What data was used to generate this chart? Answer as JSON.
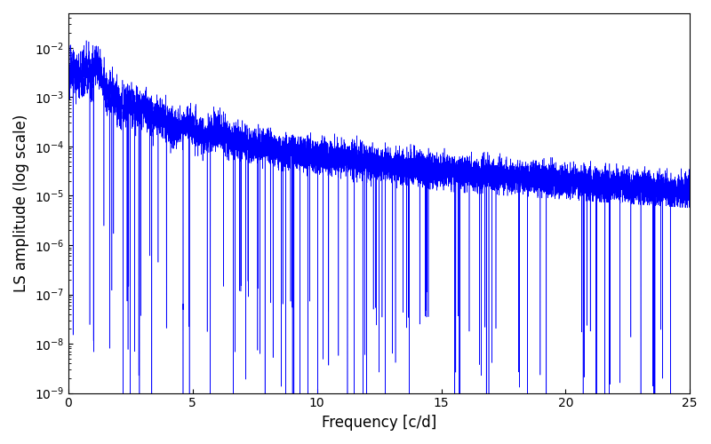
{
  "title": "",
  "xlabel": "Frequency [c/d]",
  "ylabel": "LS amplitude (log scale)",
  "xlim": [
    0,
    25
  ],
  "ylim": [
    1e-09,
    0.05
  ],
  "line_color": "#0000ff",
  "background_color": "#ffffff",
  "figsize": [
    8.0,
    5.0
  ],
  "dpi": 100,
  "freq_min": 0.001,
  "freq_max": 24.99,
  "n_points": 15000,
  "seed": 12345
}
